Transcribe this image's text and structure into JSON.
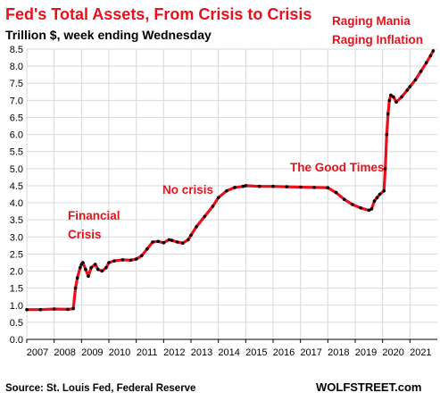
{
  "chart_data": {
    "type": "line",
    "title": "Fed's Total Assets, From Crisis to Crisis",
    "subtitle": "Trillion $, week ending Wednesday",
    "ylim": [
      0,
      8.5
    ],
    "y_ticks": [
      "0.0",
      "0.5",
      "1.0",
      "1.5",
      "2.0",
      "2.5",
      "3.0",
      "3.5",
      "4.0",
      "4.5",
      "5.0",
      "5.5",
      "6.0",
      "6.5",
      "7.0",
      "7.5",
      "8.0",
      "8.5"
    ],
    "x_ticks": [
      "2007",
      "2008",
      "2009",
      "2010",
      "2011",
      "2012",
      "2013",
      "2014",
      "2015",
      "2016",
      "2017",
      "2018",
      "2019",
      "2020",
      "2021"
    ],
    "grid": true,
    "line_color": "#e8111b",
    "marker_color": "#000000",
    "series": [
      {
        "x": [
          2007.0,
          2007.5,
          2008.0,
          2008.5,
          2008.7,
          2008.78,
          2008.85,
          2008.95,
          2009.0,
          2009.05,
          2009.15,
          2009.25,
          2009.35,
          2009.5,
          2009.6,
          2009.75,
          2009.9,
          2010.0,
          2010.2,
          2010.5,
          2010.8,
          2011.0,
          2011.2,
          2011.4,
          2011.6,
          2011.8,
          2012.0,
          2012.2,
          2012.3,
          2012.5,
          2012.7,
          2012.9,
          2013.0,
          2013.2,
          2013.5,
          2013.8,
          2014.0,
          2014.3,
          2014.6,
          2014.9,
          2015.0,
          2015.5,
          2016.0,
          2016.5,
          2017.0,
          2017.5,
          2018.0,
          2018.3,
          2018.6,
          2018.9,
          2019.2,
          2019.5,
          2019.6,
          2019.7,
          2019.8,
          2019.9,
          2020.05,
          2020.1,
          2020.15,
          2020.2,
          2020.25,
          2020.3,
          2020.4,
          2020.5,
          2020.7,
          2020.9,
          2021.0,
          2021.2,
          2021.4,
          2021.6,
          2021.75,
          2021.85
        ],
        "y": [
          0.87,
          0.87,
          0.89,
          0.88,
          0.9,
          1.5,
          1.8,
          2.1,
          2.2,
          2.25,
          2.05,
          1.85,
          2.1,
          2.2,
          2.05,
          2.0,
          2.1,
          2.25,
          2.3,
          2.33,
          2.32,
          2.35,
          2.45,
          2.65,
          2.85,
          2.87,
          2.83,
          2.92,
          2.9,
          2.85,
          2.82,
          2.92,
          3.05,
          3.3,
          3.6,
          3.9,
          4.15,
          4.35,
          4.45,
          4.48,
          4.5,
          4.48,
          4.48,
          4.47,
          4.46,
          4.45,
          4.44,
          4.3,
          4.1,
          3.95,
          3.85,
          3.78,
          3.82,
          4.05,
          4.15,
          4.25,
          4.35,
          5.0,
          6.0,
          6.6,
          7.0,
          7.15,
          7.1,
          6.95,
          7.1,
          7.3,
          7.4,
          7.6,
          7.85,
          8.1,
          8.3,
          8.45
        ]
      }
    ]
  },
  "annotations": {
    "financial_crisis_1": "Financial",
    "financial_crisis_2": "Crisis",
    "no_crisis": "No crisis",
    "good_times": "The Good Times",
    "raging_1": "Raging Mania",
    "raging_2": "Raging Inflation"
  },
  "footer": {
    "source": "Source: St. Louis Fed, Federal Reserve",
    "brand": "WOLFSTREET.com"
  }
}
